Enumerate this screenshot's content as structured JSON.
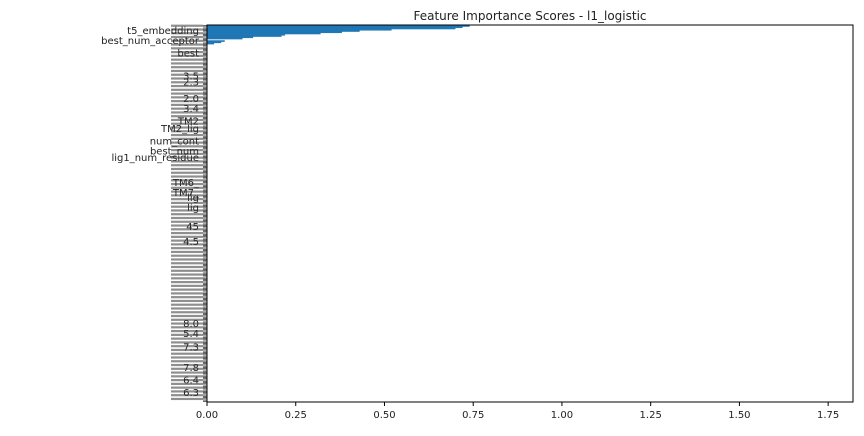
{
  "chart_data": {
    "type": "bar",
    "orientation": "horizontal",
    "title": "Feature Importance Scores - l1_logistic",
    "xlabel": "",
    "ylabel": "",
    "xlim": [
      0.0,
      1.82
    ],
    "xticks": [
      0.0,
      0.25,
      0.5,
      0.75,
      1.0,
      1.25,
      1.5,
      1.75
    ],
    "xtick_labels": [
      "0.00",
      "0.25",
      "0.50",
      "0.75",
      "1.00",
      "1.25",
      "1.50",
      "1.75"
    ],
    "bar_color": "#1f77b4",
    "category_count": 300,
    "highlighted_bars": [
      {
        "index": 0,
        "value": 0.74
      },
      {
        "index": 1,
        "value": 0.72
      },
      {
        "index": 2,
        "value": 0.7
      },
      {
        "index": 3,
        "value": 0.52
      },
      {
        "index": 4,
        "value": 0.43
      },
      {
        "index": 5,
        "value": 0.38
      },
      {
        "index": 6,
        "value": 0.32
      },
      {
        "index": 7,
        "value": 0.22
      },
      {
        "index": 8,
        "value": 0.21
      },
      {
        "index": 9,
        "value": 0.13
      },
      {
        "index": 10,
        "value": 0.1
      },
      {
        "index": 12,
        "value": 0.05
      },
      {
        "index": 13,
        "value": 0.04
      },
      {
        "index": 14,
        "value": 0.02
      }
    ],
    "tick_labels": [
      {
        "text": "t5_embedding",
        "index": 4
      },
      {
        "text": "best_num_acceptor",
        "index": 12
      },
      {
        "text": "best",
        "index": 22
      },
      {
        "text": "3.5",
        "index": 40
      },
      {
        "text": "2.3",
        "index": 45
      },
      {
        "text": "2.0",
        "index": 58
      },
      {
        "text": "3.4",
        "index": 66
      },
      {
        "text": "TM2",
        "index": 76
      },
      {
        "text": "TM2_lig",
        "index": 82
      },
      {
        "text": "num_cont",
        "index": 92
      },
      {
        "text": "best_num",
        "index": 100
      },
      {
        "text": "lig1_num_residue",
        "index": 105
      },
      {
        "text": "TM6_",
        "index": 125
      },
      {
        "text": "TM7_",
        "index": 133
      },
      {
        "text": "lig",
        "index": 137
      },
      {
        "text": "lig",
        "index": 145
      },
      {
        "text": "45",
        "index": 160
      },
      {
        "text": "4.5",
        "index": 172
      },
      {
        "text": "8.0",
        "index": 237
      },
      {
        "text": "5.4",
        "index": 245
      },
      {
        "text": "7.3",
        "index": 256
      },
      {
        "text": "7.8",
        "index": 272
      },
      {
        "text": "6.4",
        "index": 282
      },
      {
        "text": "6.3",
        "index": 292
      }
    ]
  }
}
